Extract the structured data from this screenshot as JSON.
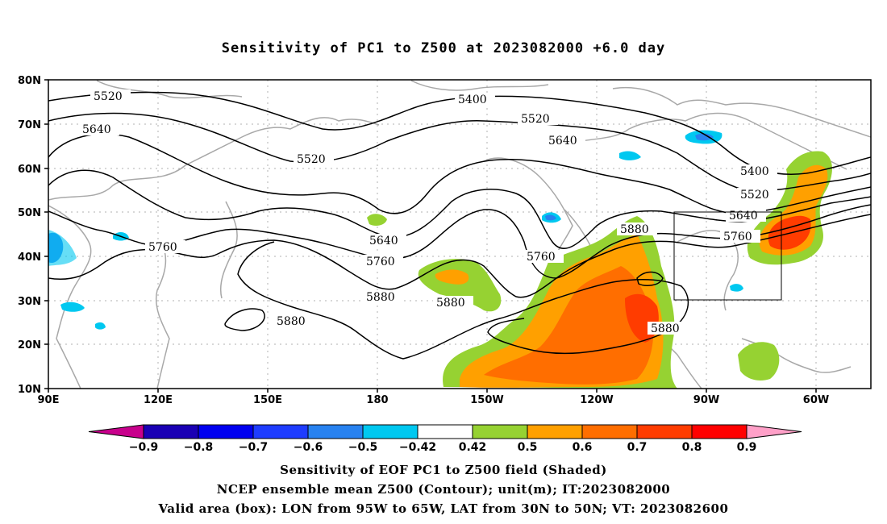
{
  "title": "Sensitivity of PC1 to Z500 at 2023082000 +6.0 day",
  "axes": {
    "lat_labels": [
      "80N",
      "70N",
      "60N",
      "50N",
      "40N",
      "30N",
      "20N",
      "10N"
    ],
    "lon_labels": [
      "90E",
      "120E",
      "150E",
      "180",
      "150W",
      "120W",
      "90W",
      "60W"
    ]
  },
  "contour_labels": {
    "c5520_w": "5520",
    "c5640_w": "5640",
    "c5760_w": "5760",
    "c5520_m": "5520",
    "c5400_n": "5400",
    "c5520_n": "5520",
    "c5640_n": "5640",
    "c5640_c": "5640",
    "c5760_c": "5760",
    "c5880_c": "5880",
    "c5880_s": "5880",
    "c5880_p": "5880",
    "c5760_e": "5760",
    "c5880_e": "5880",
    "c5880_b": "5880",
    "c5400_r": "5400",
    "c5520_r": "5520",
    "c5640_r": "5640",
    "c5760_r": "5760"
  },
  "colorbar": {
    "ticks": [
      "-0.9",
      "-0.8",
      "-0.7",
      "-0.6",
      "-0.5",
      "-0.42",
      "0.42",
      "0.5",
      "0.6",
      "0.7",
      "0.8",
      "0.9"
    ],
    "colors": [
      "#c8008c",
      "#1a00b4",
      "#0000f0",
      "#1e3cff",
      "#2882f0",
      "#00c8f0",
      "#ffffff",
      "#96d232",
      "#ffa000",
      "#ff6e00",
      "#ff3c00",
      "#ff0000",
      "#ffa0c8"
    ]
  },
  "valid_box": {
    "lon_west": "95W",
    "lon_east": "65W",
    "lat_south": "30N",
    "lat_north": "50N"
  },
  "footer": {
    "line1": "Sensitivity of EOF PC1 to Z500 field (Shaded)",
    "line2": "NCEP ensemble mean Z500 (Contour); unit(m); IT:2023082000",
    "line3": "Valid area (box): LON from 95W to 65W, LAT from 30N to 50N; VT: 2023082600"
  }
}
